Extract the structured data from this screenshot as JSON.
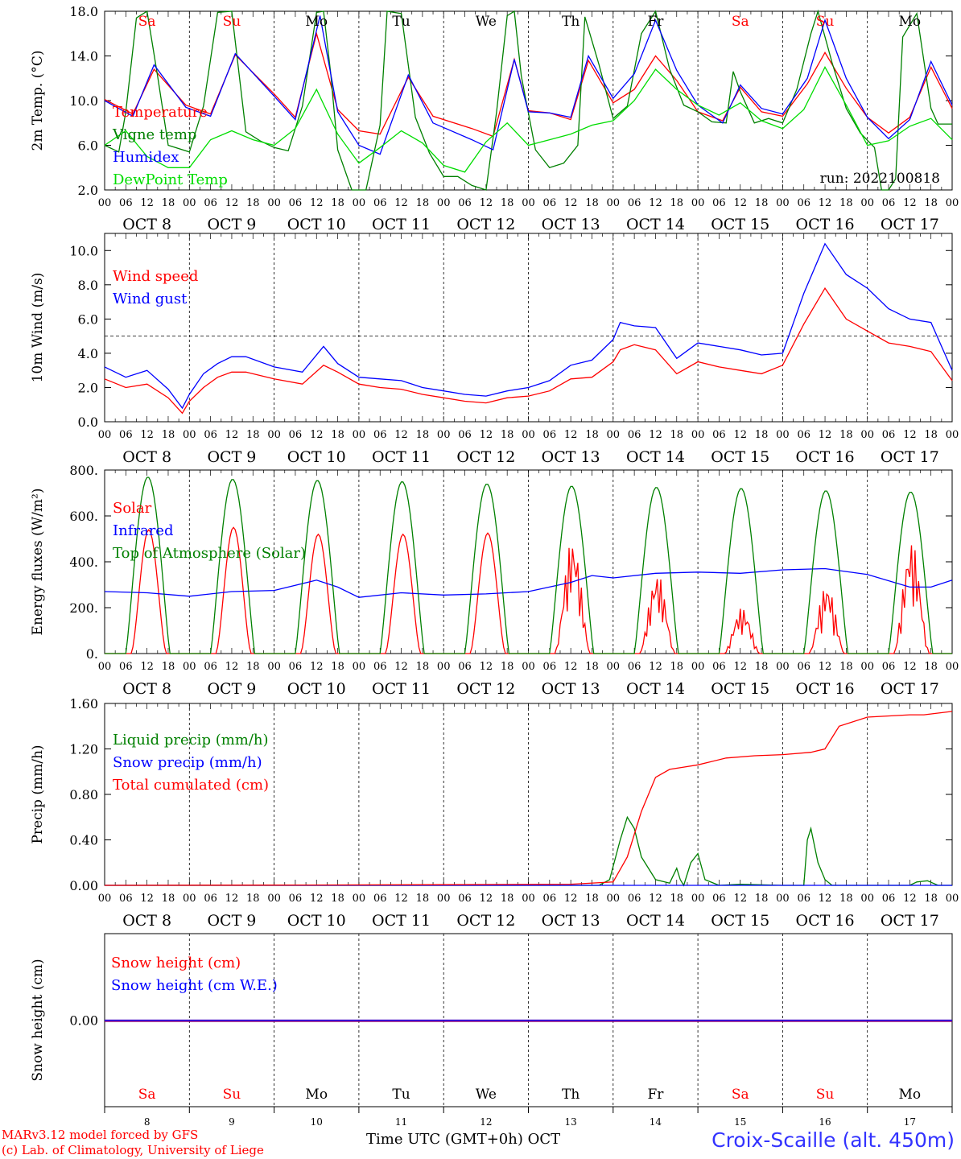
{
  "x_axis": {
    "hour_ticks": [
      "00",
      "06",
      "12",
      "18"
    ],
    "days": [
      {
        "date": "OCT  8",
        "short": "8",
        "weekday": "Sa",
        "weekend": true
      },
      {
        "date": "OCT  9",
        "short": "9",
        "weekday": "Su",
        "weekend": true
      },
      {
        "date": "OCT 10",
        "short": "10",
        "weekday": "Mo",
        "weekend": false
      },
      {
        "date": "OCT 11",
        "short": "11",
        "weekday": "Tu",
        "weekend": false
      },
      {
        "date": "OCT 12",
        "short": "12",
        "weekday": "We",
        "weekend": false
      },
      {
        "date": "OCT 13",
        "short": "13",
        "weekday": "Th",
        "weekend": false
      },
      {
        "date": "OCT 14",
        "short": "14",
        "weekday": "Fr",
        "weekend": false
      },
      {
        "date": "OCT 15",
        "short": "15",
        "weekday": "Sa",
        "weekend": true
      },
      {
        "date": "OCT 16",
        "short": "16",
        "weekday": "Su",
        "weekend": true
      },
      {
        "date": "OCT 17",
        "short": "17",
        "weekday": "Mo",
        "weekend": false
      }
    ],
    "final_tick": "00",
    "bottom_label": "Time UTC (GMT+0h)",
    "month": "OCT"
  },
  "footer": {
    "credit_line1": "MARv3.12 model forced by GFS",
    "credit_line2": "(c) Lab. of Climatology, University of Liege",
    "station": "Croix-Scaille (alt. 450m)"
  },
  "colors": {
    "red": "#ff0000",
    "green": "#008000",
    "blue": "#0000ff",
    "lightgreen": "#00dd00",
    "purple": "#800080",
    "weekend": "#ff0000",
    "grid": "#000000"
  },
  "chart_data": [
    {
      "type": "line",
      "ylabel": "2m Temp. (°C)",
      "ylim": [
        2.0,
        18.0
      ],
      "yticks": [
        "2.0",
        "6.0",
        "10.0",
        "14.0",
        "18.0"
      ],
      "run_label": "run: 2022100818",
      "show_weekdays": true,
      "series": [
        {
          "name": "Temperature",
          "color": "red",
          "x": [
            0,
            8,
            14,
            23,
            30,
            37,
            48,
            54,
            60,
            66,
            72,
            78,
            86,
            93,
            104,
            110,
            116,
            120,
            126,
            132,
            137,
            144,
            150,
            156,
            162,
            168,
            175,
            180,
            186,
            192,
            199,
            204,
            210,
            216,
            222,
            228,
            234,
            240
          ],
          "values": [
            10.1,
            8.8,
            12.8,
            9.6,
            8.8,
            14.1,
            10.6,
            8.5,
            16.0,
            9.2,
            7.3,
            7.0,
            12.1,
            8.6,
            7.5,
            6.8,
            13.7,
            9.1,
            8.9,
            8.3,
            13.6,
            9.8,
            11.0,
            14.0,
            11.8,
            9.0,
            8.2,
            11.2,
            9.0,
            8.6,
            11.5,
            14.3,
            11.1,
            8.5,
            7.1,
            8.5,
            13.0,
            9.3
          ]
        },
        {
          "name": "Vigne temp",
          "color": "green",
          "x": [
            0,
            4,
            6,
            9,
            12,
            15,
            18,
            20,
            24,
            28,
            32,
            36,
            40,
            44,
            48,
            52,
            56,
            60,
            62,
            64,
            66,
            70,
            74,
            78,
            80,
            84,
            88,
            92,
            96,
            100,
            104,
            108,
            111,
            114,
            116,
            118,
            122,
            126,
            130,
            134,
            136,
            140,
            144,
            148,
            152,
            156,
            160,
            164,
            168,
            172,
            176,
            178,
            180,
            184,
            188,
            192,
            196,
            200,
            202,
            206,
            210,
            214,
            218,
            220,
            222,
            224,
            226,
            230,
            234,
            236,
            240
          ],
          "values": [
            6.0,
            5.4,
            9.0,
            17.4,
            18.0,
            12.2,
            6.0,
            5.8,
            5.4,
            9.5,
            17.9,
            18.0,
            7.2,
            6.4,
            5.8,
            5.5,
            9.5,
            17.9,
            18.0,
            12.5,
            5.6,
            1.8,
            1.5,
            7.8,
            18.0,
            17.8,
            8.5,
            5.3,
            3.2,
            3.2,
            2.4,
            2.0,
            9.0,
            17.6,
            18.0,
            12.2,
            5.6,
            4.0,
            4.4,
            6.0,
            17.5,
            13.2,
            8.4,
            9.5,
            16.0,
            18.0,
            12.8,
            9.6,
            9.0,
            8.1,
            8.0,
            12.6,
            10.8,
            8.0,
            8.4,
            8.0,
            11.0,
            16.0,
            18.0,
            13.4,
            9.3,
            7.1,
            5.8,
            1.9,
            1.5,
            3.0,
            15.7,
            17.8,
            9.3,
            7.9,
            7.9
          ]
        },
        {
          "name": "Humidex",
          "color": "blue",
          "x": [
            0,
            8,
            14,
            23,
            30,
            37,
            48,
            54,
            61,
            66,
            72,
            78,
            86,
            93,
            104,
            110,
            116,
            120,
            126,
            132,
            137,
            144,
            150,
            156,
            162,
            168,
            175,
            180,
            186,
            192,
            199,
            204,
            210,
            216,
            222,
            228,
            234,
            240
          ],
          "values": [
            10.0,
            8.6,
            13.2,
            9.4,
            8.6,
            14.2,
            10.4,
            8.3,
            17.6,
            9.0,
            6.0,
            5.2,
            12.3,
            8.0,
            6.5,
            5.6,
            13.7,
            9.0,
            8.9,
            8.5,
            14.0,
            10.2,
            12.4,
            17.2,
            12.7,
            9.6,
            8.0,
            11.4,
            9.3,
            8.8,
            12.0,
            17.2,
            12.0,
            8.5,
            6.6,
            8.3,
            13.5,
            9.6
          ]
        },
        {
          "name": "DewPoint Temp",
          "color": "lightgreen",
          "x": [
            0,
            6,
            12,
            18,
            24,
            30,
            36,
            42,
            48,
            54,
            60,
            66,
            72,
            78,
            84,
            90,
            96,
            102,
            108,
            114,
            120,
            126,
            132,
            138,
            144,
            150,
            156,
            162,
            168,
            174,
            180,
            186,
            192,
            198,
            204,
            210,
            216,
            222,
            228,
            234,
            240
          ],
          "values": [
            6.0,
            7.3,
            5.0,
            4.0,
            4.0,
            6.5,
            7.3,
            6.5,
            6.0,
            7.5,
            11.0,
            7.0,
            4.4,
            5.8,
            7.3,
            6.2,
            4.2,
            3.6,
            6.3,
            8.0,
            6.0,
            6.5,
            7.0,
            7.8,
            8.2,
            10.0,
            12.8,
            11.0,
            9.6,
            8.7,
            9.8,
            8.2,
            7.5,
            9.2,
            13.0,
            9.6,
            6.0,
            6.4,
            7.7,
            8.4,
            6.5
          ]
        }
      ]
    },
    {
      "type": "line",
      "ylabel": "10m Wind (m/s)",
      "ylim": [
        0.0,
        11.0
      ],
      "yticks": [
        "0.0",
        "2.0",
        "4.0",
        "6.0",
        "8.0",
        "10.0"
      ],
      "reference_line": 5.0,
      "show_weekdays": false,
      "series": [
        {
          "name": "Wind speed",
          "color": "red",
          "x": [
            0,
            6,
            12,
            18,
            22,
            24,
            28,
            32,
            36,
            40,
            48,
            56,
            62,
            66,
            72,
            78,
            84,
            90,
            96,
            102,
            108,
            114,
            120,
            126,
            132,
            138,
            144,
            146,
            150,
            156,
            162,
            168,
            174,
            180,
            186,
            192,
            198,
            204,
            210,
            216,
            222,
            228,
            234,
            240
          ],
          "values": [
            2.5,
            2.0,
            2.2,
            1.4,
            0.5,
            1.2,
            2.0,
            2.6,
            2.9,
            2.9,
            2.5,
            2.2,
            3.3,
            2.9,
            2.2,
            2.0,
            1.9,
            1.6,
            1.4,
            1.2,
            1.1,
            1.4,
            1.5,
            1.8,
            2.5,
            2.6,
            3.5,
            4.2,
            4.5,
            4.2,
            2.8,
            3.5,
            3.2,
            3.0,
            2.8,
            3.3,
            5.7,
            7.8,
            6.0,
            5.3,
            4.6,
            4.4,
            4.1,
            2.4
          ]
        },
        {
          "name": "Wind gust",
          "color": "blue",
          "x": [
            0,
            6,
            12,
            18,
            22,
            24,
            28,
            32,
            36,
            40,
            48,
            56,
            62,
            66,
            72,
            78,
            84,
            90,
            96,
            102,
            108,
            114,
            120,
            126,
            132,
            138,
            144,
            146,
            150,
            156,
            162,
            168,
            174,
            180,
            186,
            192,
            198,
            204,
            210,
            216,
            222,
            228,
            234,
            240
          ],
          "values": [
            3.2,
            2.6,
            3.0,
            1.9,
            0.8,
            1.6,
            2.8,
            3.4,
            3.8,
            3.8,
            3.2,
            2.9,
            4.4,
            3.4,
            2.6,
            2.5,
            2.4,
            2.0,
            1.8,
            1.6,
            1.5,
            1.8,
            2.0,
            2.4,
            3.3,
            3.6,
            4.8,
            5.8,
            5.6,
            5.5,
            3.7,
            4.6,
            4.4,
            4.2,
            3.9,
            4.0,
            7.5,
            10.4,
            8.6,
            7.8,
            6.6,
            6.0,
            5.8,
            3.0
          ]
        }
      ]
    },
    {
      "type": "line",
      "ylabel": "Energy fluxes (W/m²)",
      "ylim": [
        0,
        800
      ],
      "yticks": [
        "0.",
        "200.",
        "400.",
        "600.",
        "800."
      ],
      "show_weekdays": false,
      "series": [
        {
          "name": "Solar",
          "color": "red",
          "peaks": [
            540,
            550,
            520,
            520,
            525,
            500,
            350,
            200,
            300,
            490
          ],
          "shape": [
            "smooth",
            "smooth",
            "smooth",
            "smooth",
            "smooth",
            "spiky",
            "spiky",
            "spiky",
            "spiky",
            "spiky"
          ]
        },
        {
          "name": "Infrared",
          "color": "blue",
          "x": [
            0,
            12,
            24,
            36,
            48,
            60,
            66,
            72,
            84,
            96,
            108,
            120,
            132,
            138,
            144,
            156,
            168,
            180,
            192,
            204,
            216,
            228,
            234,
            240
          ],
          "values": [
            270,
            265,
            250,
            270,
            275,
            320,
            290,
            245,
            265,
            255,
            260,
            270,
            310,
            340,
            330,
            350,
            355,
            350,
            365,
            370,
            345,
            290,
            290,
            320
          ]
        },
        {
          "name": "Top of Atmosphere (Solar)",
          "color": "green",
          "peaks": [
            770,
            760,
            755,
            750,
            740,
            730,
            725,
            720,
            710,
            705
          ]
        }
      ]
    },
    {
      "type": "line",
      "ylabel": "Precip (mm/h)",
      "ylim": [
        0.0,
        1.6
      ],
      "yticks": [
        "0.00",
        "0.40",
        "0.80",
        "1.20",
        "1.60"
      ],
      "show_weekdays": false,
      "series": [
        {
          "name": "Liquid precip (mm/h)",
          "color": "green",
          "x": [
            0,
            130,
            140,
            143,
            146,
            148,
            150,
            152,
            156,
            160,
            162,
            163,
            164,
            166,
            168,
            170,
            174,
            180,
            192,
            198,
            199,
            200,
            202,
            204,
            206,
            210,
            216,
            228,
            230,
            233,
            236,
            240
          ],
          "values": [
            0,
            0,
            0,
            0.05,
            0.4,
            0.6,
            0.5,
            0.25,
            0.05,
            0.02,
            0.15,
            0.05,
            0.0,
            0.2,
            0.28,
            0.05,
            0.0,
            0.01,
            0.0,
            0.0,
            0.4,
            0.5,
            0.2,
            0.05,
            0.0,
            0.0,
            0.0,
            0.0,
            0.03,
            0.04,
            0.0,
            0.0
          ]
        },
        {
          "name": "Snow precip (mm/h)",
          "color": "blue",
          "x": [
            0,
            240
          ],
          "values": [
            0,
            0
          ]
        },
        {
          "name": "Total cumulated (cm)",
          "color": "red",
          "x": [
            0,
            48,
            96,
            132,
            144,
            148,
            152,
            156,
            160,
            164,
            168,
            176,
            184,
            192,
            200,
            204,
            208,
            216,
            228,
            232,
            240
          ],
          "values": [
            0,
            0.002,
            0.006,
            0.01,
            0.03,
            0.25,
            0.65,
            0.95,
            1.02,
            1.04,
            1.06,
            1.12,
            1.14,
            1.15,
            1.17,
            1.2,
            1.4,
            1.48,
            1.5,
            1.5,
            1.53
          ]
        }
      ]
    },
    {
      "type": "line",
      "ylabel": "Snow height (cm)",
      "yticks": [
        "0.00"
      ],
      "show_weekdays": true,
      "bottom_axis": true,
      "series": [
        {
          "name": "Snow height (cm)",
          "color": "red",
          "x": [
            0,
            240
          ],
          "values": [
            0,
            0
          ]
        },
        {
          "name": "Snow height (cm W.E.)",
          "color": "blue",
          "x": [
            0,
            240
          ],
          "values": [
            0,
            0
          ]
        }
      ]
    }
  ]
}
